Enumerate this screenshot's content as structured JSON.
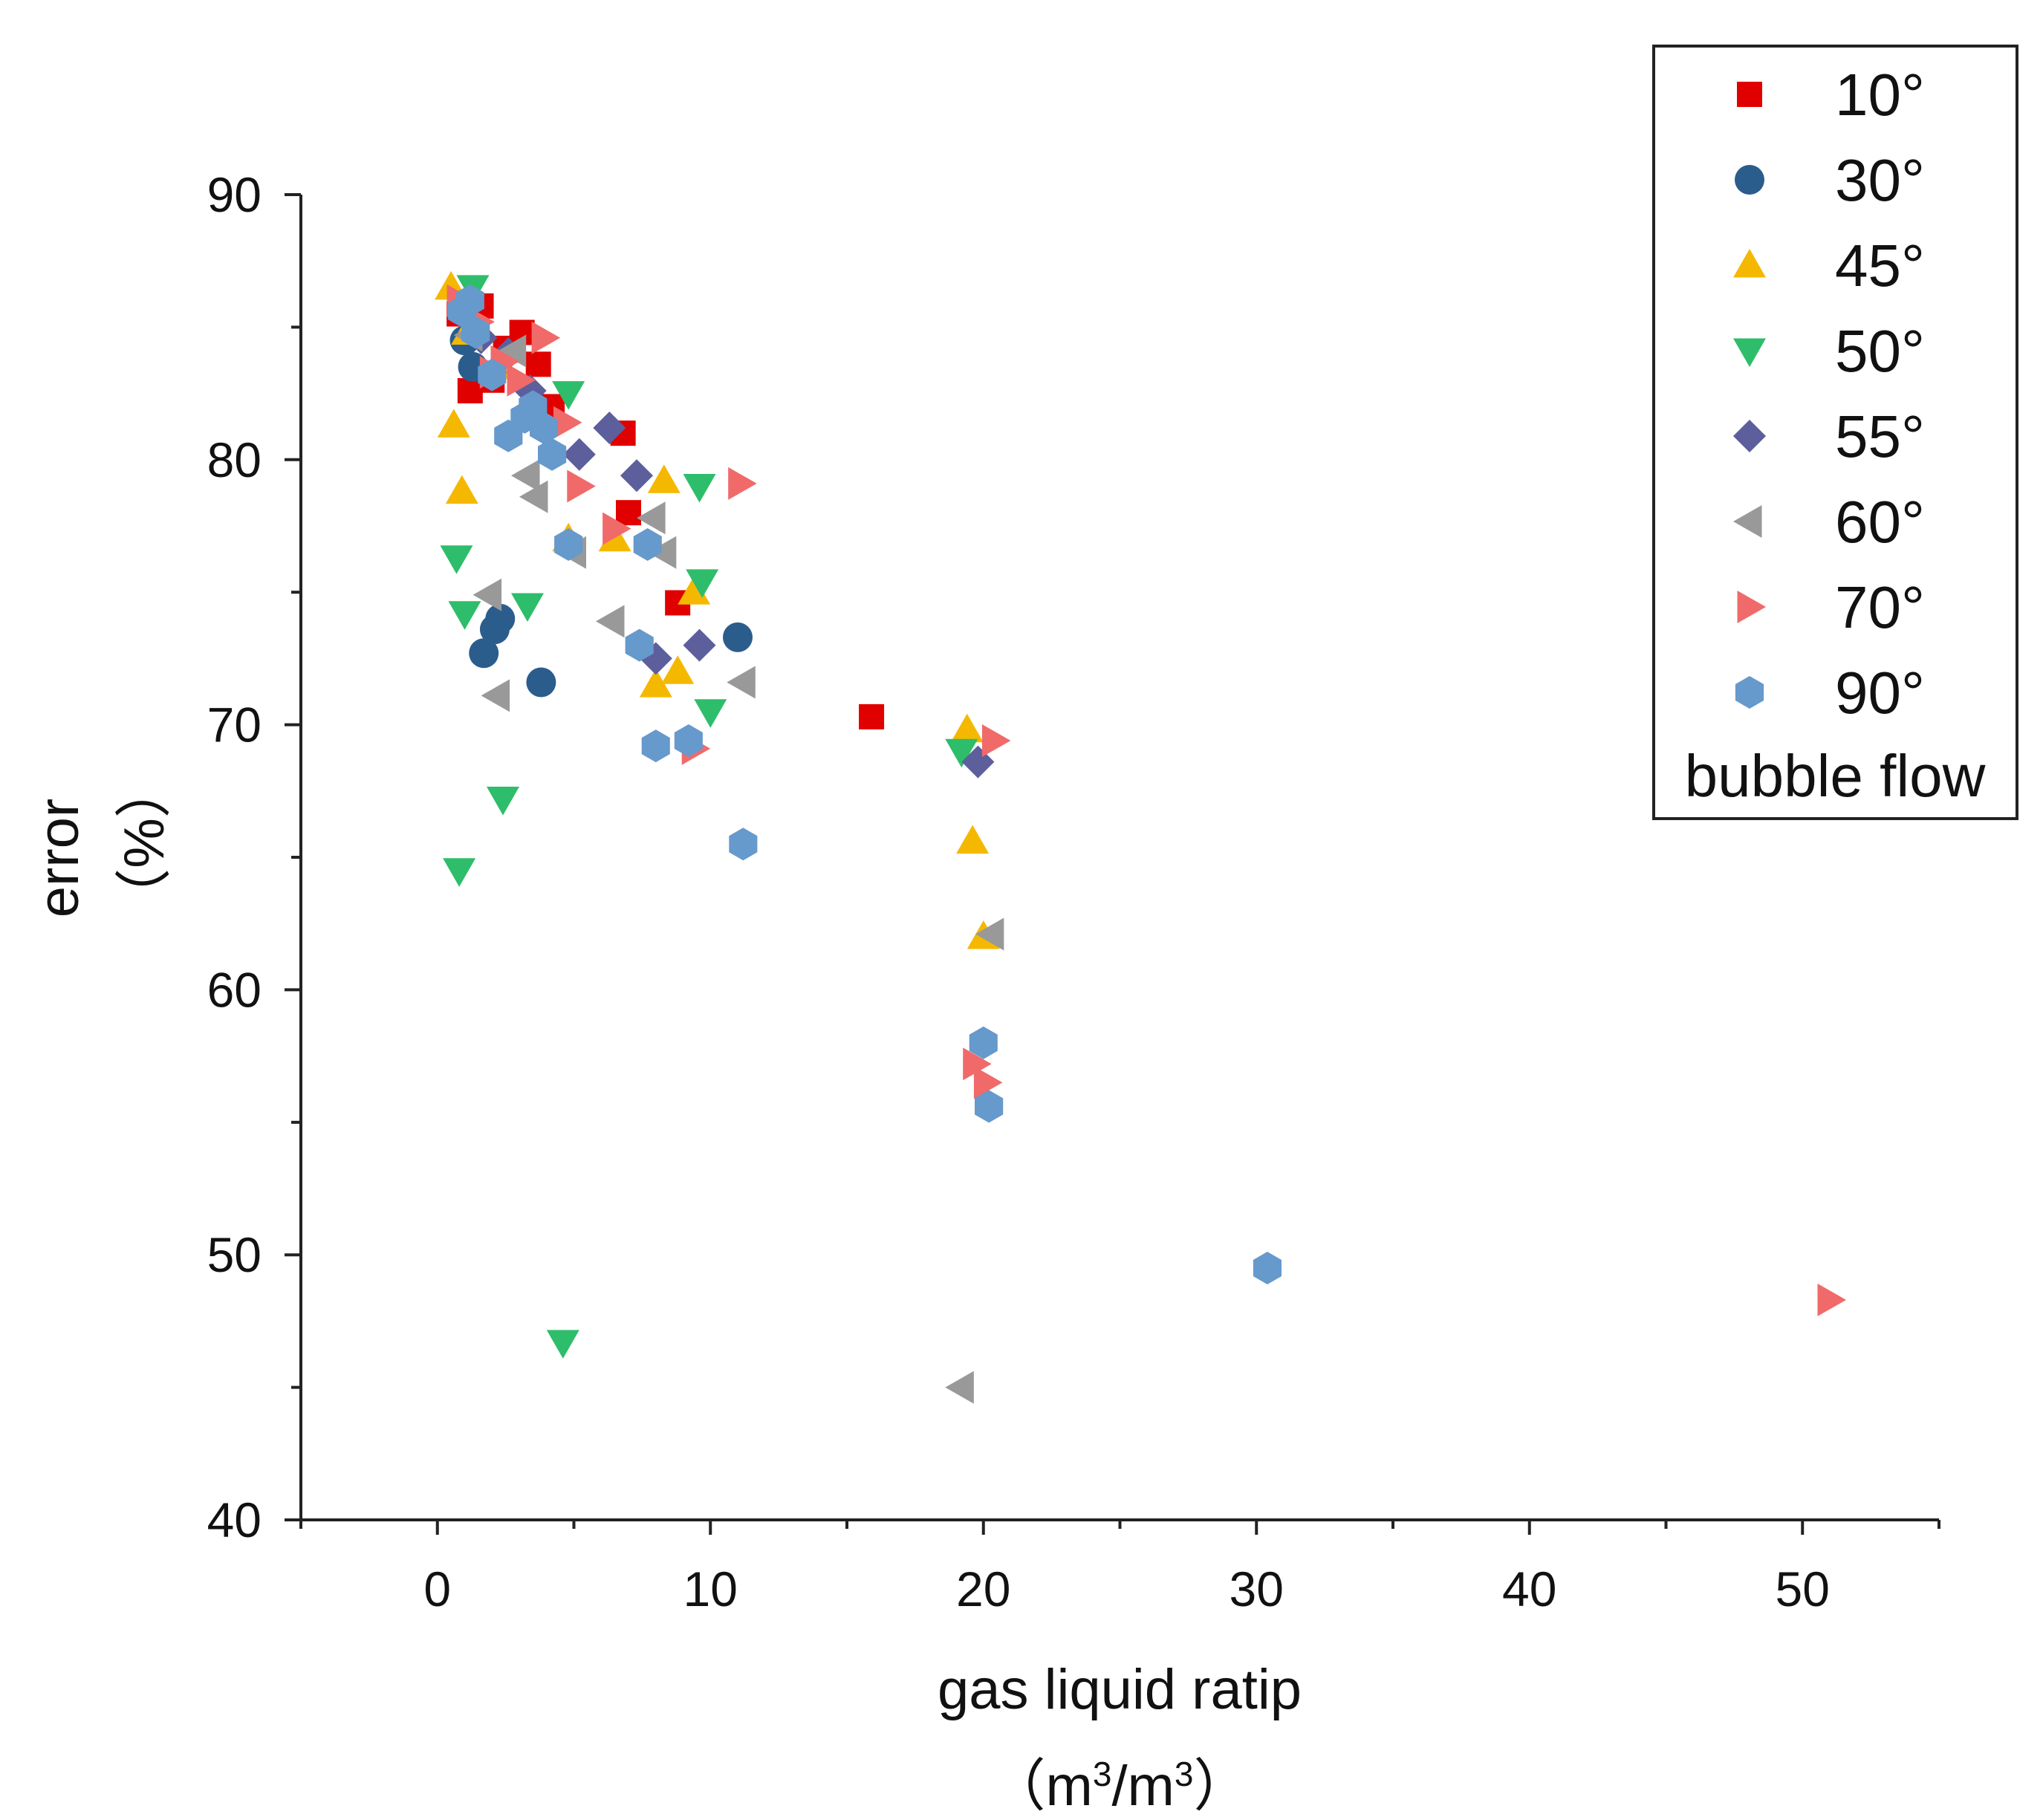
{
  "chart_data": {
    "type": "scatter",
    "title": "",
    "xlabel_line1": "gas liquid ratip",
    "xlabel_line2_prefix": "（m",
    "xlabel_line2_sup1": "3",
    "xlabel_line2_mid": "/m",
    "xlabel_line2_sup2": "3",
    "xlabel_line2_suffix": "）",
    "ylabel_line1": "error",
    "ylabel_line2": "（%）",
    "xlim": [
      -5,
      55
    ],
    "ylim": [
      40,
      90
    ],
    "xticks": [
      0,
      10,
      20,
      30,
      40,
      50
    ],
    "yticks": [
      40,
      50,
      60,
      70,
      80,
      90
    ],
    "grid": false,
    "legend_position": "top-right",
    "legend_note": "bubble flow",
    "series": [
      {
        "name": "10°",
        "marker": "square",
        "color": "#e00000",
        "x": [
          0.8,
          1.2,
          1.6,
          2.0,
          2.5,
          3.1,
          3.7,
          4.2,
          6.8,
          7.0,
          8.8,
          15.9
        ],
        "y": [
          85.5,
          82.6,
          85.8,
          83.0,
          84.2,
          84.8,
          83.6,
          82.0,
          81.0,
          78.0,
          74.6,
          70.3
        ]
      },
      {
        "name": "30°",
        "marker": "circle",
        "color": "#2b5d8c",
        "x": [
          1.0,
          1.3,
          1.7,
          2.1,
          2.3,
          3.8,
          11.0
        ],
        "y": [
          84.5,
          83.5,
          72.7,
          73.6,
          74.0,
          71.6,
          73.3
        ]
      },
      {
        "name": "45°",
        "marker": "triangle-up",
        "color": "#f5b800",
        "x": [
          0.5,
          0.6,
          0.9,
          1.1,
          1.3,
          2.2,
          4.8,
          6.5,
          8.0,
          8.3,
          8.8,
          9.4,
          19.4,
          19.6,
          20.0
        ],
        "y": [
          86.5,
          81.3,
          78.8,
          84.8,
          85.0,
          83.5,
          77.0,
          77.0,
          71.5,
          79.2,
          72.0,
          75.0,
          69.8,
          65.6,
          62.0
        ]
      },
      {
        "name": "50°",
        "marker": "triangle-down",
        "color": "#2ebd6a",
        "x": [
          0.7,
          0.8,
          1.0,
          1.3,
          2.4,
          3.3,
          4.6,
          4.8,
          9.6,
          9.7,
          10.0,
          19.2
        ],
        "y": [
          76.3,
          64.5,
          74.2,
          86.5,
          67.2,
          74.5,
          46.7,
          82.5,
          79.0,
          75.4,
          70.5,
          69.0
        ]
      },
      {
        "name": "55°",
        "marker": "diamond",
        "color": "#5c5f9c",
        "x": [
          1.6,
          2.6,
          3.4,
          5.2,
          6.3,
          7.3,
          8.0,
          9.6,
          19.8
        ],
        "y": [
          84.6,
          84.0,
          82.6,
          80.2,
          81.2,
          79.4,
          72.5,
          73.0,
          68.6
        ]
      },
      {
        "name": "60°",
        "marker": "triangle-left",
        "color": "#999999",
        "x": [
          1.2,
          1.9,
          2.2,
          2.8,
          3.3,
          3.6,
          5.0,
          6.4,
          7.9,
          8.3,
          11.2,
          19.2,
          20.3
        ],
        "y": [
          84.7,
          74.9,
          71.1,
          84.1,
          79.4,
          78.6,
          76.5,
          73.9,
          77.8,
          76.5,
          71.6,
          45.0,
          62.1
        ]
      },
      {
        "name": "70°",
        "marker": "triangle-right",
        "color": "#f06a6a",
        "x": [
          0.8,
          1.5,
          2.0,
          2.4,
          3.0,
          3.9,
          4.7,
          5.2,
          6.5,
          9.4,
          11.1,
          19.7,
          20.1,
          20.4,
          51.0
        ],
        "y": [
          86.0,
          85.2,
          83.3,
          83.7,
          83.0,
          84.6,
          81.4,
          79.0,
          77.4,
          69.1,
          79.1,
          57.2,
          56.5,
          69.4,
          48.3
        ]
      },
      {
        "name": "90°",
        "marker": "hexagon",
        "color": "#6699cc",
        "x": [
          0.9,
          1.2,
          1.4,
          2.0,
          2.6,
          3.2,
          3.5,
          3.9,
          4.2,
          4.8,
          7.4,
          7.7,
          8.0,
          9.2,
          11.2,
          20.0,
          20.2,
          30.4
        ],
        "y": [
          85.6,
          86.0,
          84.8,
          83.2,
          80.9,
          81.6,
          82.0,
          81.2,
          80.2,
          76.8,
          73.0,
          76.8,
          69.2,
          69.4,
          65.5,
          58.0,
          55.6,
          49.5
        ]
      }
    ]
  }
}
